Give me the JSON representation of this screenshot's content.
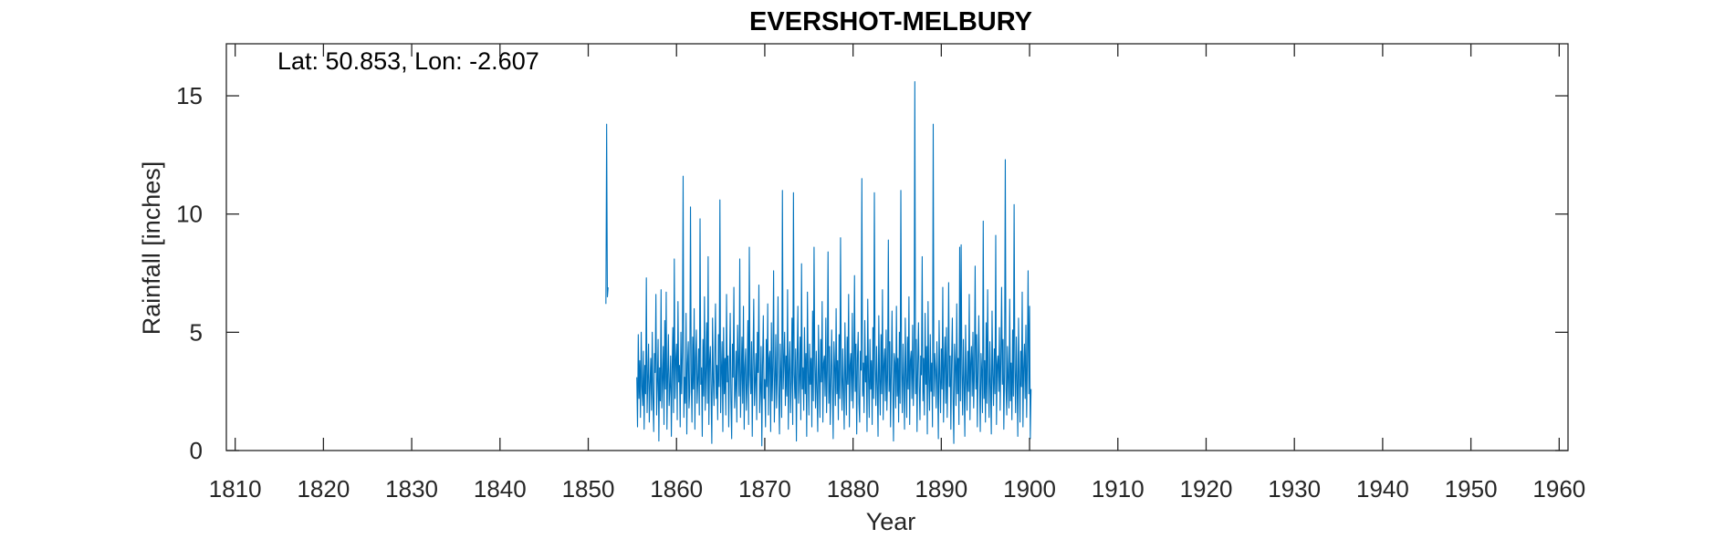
{
  "chart_data": {
    "type": "line",
    "title": "EVERSHOT-MELBURY",
    "annotation": "Lat: 50.853, Lon: -2.607",
    "xlabel": "Year",
    "ylabel": "Rainfall [inches]",
    "xlim": [
      1809,
      1961
    ],
    "ylim": [
      0,
      17.2
    ],
    "xticks": [
      1810,
      1820,
      1830,
      1840,
      1850,
      1860,
      1870,
      1880,
      1890,
      1900,
      1910,
      1920,
      1930,
      1940,
      1950,
      1960
    ],
    "yticks": [
      0,
      5,
      10,
      15
    ],
    "grid": false,
    "line_color": "#0072BD",
    "series": [
      {
        "segments": [
          {
            "x": [
              1852.0,
              1852.083,
              1852.167,
              1852.25
            ],
            "y": [
              6.2,
              13.8,
              6.5,
              6.9
            ]
          },
          {
            "x_start": 1855.5,
            "x_step": 0.08333,
            "y": [
              3.1,
              1.0,
              4.9,
              2.2,
              3.8,
              1.4,
              5.0,
              2.7,
              1.9,
              4.2,
              0.9,
              3.6,
              2.4,
              7.3,
              1.6,
              3.0,
              4.5,
              1.2,
              2.8,
              3.9,
              1.7,
              5.0,
              2.3,
              0.8,
              4.1,
              3.3,
              6.6,
              1.5,
              2.9,
              4.7,
              0.4,
              3.5,
              2.1,
              6.8,
              1.8,
              3.0,
              4.4,
              1.1,
              5.5,
              2.6,
              6.7,
              0.9,
              3.2,
              4.9,
              1.9,
              2.7,
              4.0,
              0.6,
              3.4,
              5.2,
              1.6,
              8.1,
              2.2,
              3.8,
              4.5,
              1.3,
              6.3,
              2.9,
              3.6,
              1.0,
              5.0,
              2.4,
              4.2,
              11.6,
              1.4,
              3.1,
              2.0,
              5.8,
              0.7,
              3.7,
              4.6,
              1.8,
              2.5,
              10.3,
              3.3,
              1.2,
              4.8,
              2.6,
              6.0,
              0.9,
              3.9,
              5.1,
              2.0,
              3.0,
              4.3,
              1.5,
              9.8,
              2.8,
              3.5,
              0.6,
              4.7,
              2.3,
              6.5,
              1.7,
              3.2,
              5.4,
              2.0,
              8.2,
              1.1,
              3.8,
              4.4,
              2.5,
              0.3,
              5.6,
              3.0,
              1.9,
              4.1,
              6.2,
              2.2,
              3.6,
              1.3,
              4.9,
              2.7,
              10.6,
              1.6,
              3.3,
              4.6,
              0.8,
              5.2,
              2.4,
              3.9,
              1.5,
              6.6,
              2.9,
              4.0,
              1.0,
              3.4,
              5.8,
              2.1,
              0.5,
              4.5,
              3.1,
              6.9,
              1.8,
              2.6,
              4.2,
              1.2,
              5.3,
              3.7,
              2.3,
              8.1,
              1.4,
              3.0,
              4.8,
              2.0,
              6.1,
              0.9,
              3.5,
              4.3,
              1.7,
              2.8,
              5.5,
              1.1,
              8.6,
              3.2,
              2.4,
              4.6,
              0.6,
              3.8,
              6.4,
              1.9,
              2.9,
              4.1,
              1.3,
              5.0,
              3.3,
              7.0,
              1.6,
              2.5,
              4.4,
              0.2,
              3.6,
              5.7,
              2.2,
              3.0,
              1.0,
              4.7,
              2.7,
              6.2,
              1.5,
              3.9,
              4.2,
              0.8,
              5.4,
              2.1,
              3.5,
              7.6,
              1.2,
              2.8,
              4.9,
              1.8,
              3.3,
              6.5,
              2.4,
              0.7,
              4.5,
              3.1,
              1.4,
              11.0,
              2.6,
              3.7,
              5.0,
              1.9,
              4.0,
              2.3,
              6.8,
              0.9,
              3.4,
              4.6,
              1.6,
              2.9,
              5.6,
              1.1,
              10.9,
              3.2,
              2.2,
              4.3,
              0.4,
              3.8,
              6.1,
              2.0,
              3.0,
              4.8,
              1.3,
              7.9,
              2.6,
              3.5,
              1.7,
              5.2,
              2.4,
              4.1,
              0.6,
              6.7,
              3.3,
              1.5,
              4.5,
              2.8,
              3.9,
              1.0,
              5.9,
              2.1,
              8.6,
              3.6,
              1.8,
              4.2,
              2.5,
              0.8,
              5.3,
              3.1,
              1.4,
              4.7,
              2.9,
              6.3,
              1.2,
              3.7,
              4.0,
              2.3,
              5.6,
              1.6,
              3.4,
              8.4,
              2.0,
              4.4,
              1.1,
              3.0,
              5.1,
              2.7,
              0.5,
              4.6,
              3.5,
              1.9,
              6.0,
              2.4,
              3.8,
              1.3,
              4.9,
              2.2,
              9.0,
              3.2,
              1.7,
              4.3,
              2.6,
              0.9,
              5.4,
              3.0,
              1.5,
              4.8,
              2.8,
              6.6,
              1.0,
              3.6,
              4.1,
              2.1,
              5.8,
              1.8,
              3.3,
              7.4,
              2.5,
              4.5,
              0.7,
              3.9,
              5.0,
              2.0,
              1.2,
              4.2,
              3.4,
              11.5,
              2.3,
              3.7,
              1.6,
              5.5,
              2.9,
              4.0,
              0.8,
              6.4,
              3.1,
              1.4,
              4.7,
              2.6,
              3.8,
              1.1,
              5.2,
              2.2,
              10.9,
              3.5,
              1.9,
              4.4,
              2.7,
              0.6,
              5.7,
              3.0,
              1.5,
              4.9,
              2.4,
              6.8,
              1.3,
              3.6,
              4.3,
              2.1,
              5.1,
              1.7,
              3.2,
              8.9,
              2.5,
              4.6,
              1.0,
              3.4,
              5.9,
              2.8,
              0.4,
              4.1,
              3.7,
              1.8,
              6.1,
              2.3,
              3.9,
              1.2,
              5.0,
              2.0,
              11.0,
              3.3,
              1.6,
              4.5,
              2.9,
              0.9,
              5.6,
              3.1,
              1.4,
              4.8,
              2.6,
              6.5,
              1.1,
              3.8,
              4.2,
              2.2,
              5.3,
              1.9,
              3.5,
              15.6,
              2.4,
              4.7,
              0.8,
              3.6,
              5.4,
              2.7,
              1.3,
              4.0,
              3.2,
              8.2,
              2.1,
              3.9,
              1.5,
              5.8,
              2.8,
              4.4,
              0.7,
              6.3,
              3.0,
              1.7,
              4.9,
              2.5,
              3.7,
              1.0,
              13.8,
              2.3,
              4.1,
              3.4,
              1.8,
              4.6,
              2.9,
              0.5,
              5.5,
              3.1,
              1.6,
              4.3,
              2.6,
              6.9,
              1.2,
              3.5,
              4.8,
              2.0,
              5.2,
              1.4,
              3.3,
              7.1,
              2.7,
              4.0,
              0.9,
              3.8,
              5.6,
              2.2,
              0.3,
              4.5,
              3.6,
              1.9,
              6.2,
              2.4,
              3.9,
              1.1,
              8.6,
              2.1,
              8.7,
              3.2,
              1.5,
              4.7,
              2.8,
              0.6,
              5.3,
              3.0,
              1.7,
              4.2,
              2.5,
              6.6,
              1.3,
              3.7,
              4.4,
              2.3,
              5.0,
              1.8,
              3.4,
              7.8,
              2.6,
              4.9,
              1.0,
              3.5,
              5.7,
              2.9,
              0.8,
              4.1,
              3.3,
              1.6,
              9.7,
              2.2,
              3.8,
              1.2,
              5.4,
              2.0,
              6.8,
              3.1,
              1.4,
              4.6,
              2.7,
              0.7,
              5.9,
              3.2,
              1.9,
              4.3,
              2.4,
              9.1,
              1.1,
              3.6,
              4.0,
              2.5,
              5.2,
              1.7,
              3.9,
              6.9,
              2.8,
              4.7,
              0.9,
              3.3,
              12.3,
              2.6,
              1.5,
              4.4,
              3.0,
              1.8,
              6.4,
              2.1,
              3.7,
              1.3,
              5.1,
              2.3,
              10.4,
              3.4,
              1.6,
              4.8,
              2.9,
              0.6,
              5.6,
              3.1,
              1.2,
              4.2,
              2.7,
              6.7,
              1.0,
              3.5,
              4.5,
              2.2,
              5.3,
              1.4,
              3.8,
              7.6,
              2.4,
              6.1,
              0.5,
              2.6
            ]
          }
        ]
      }
    ]
  }
}
